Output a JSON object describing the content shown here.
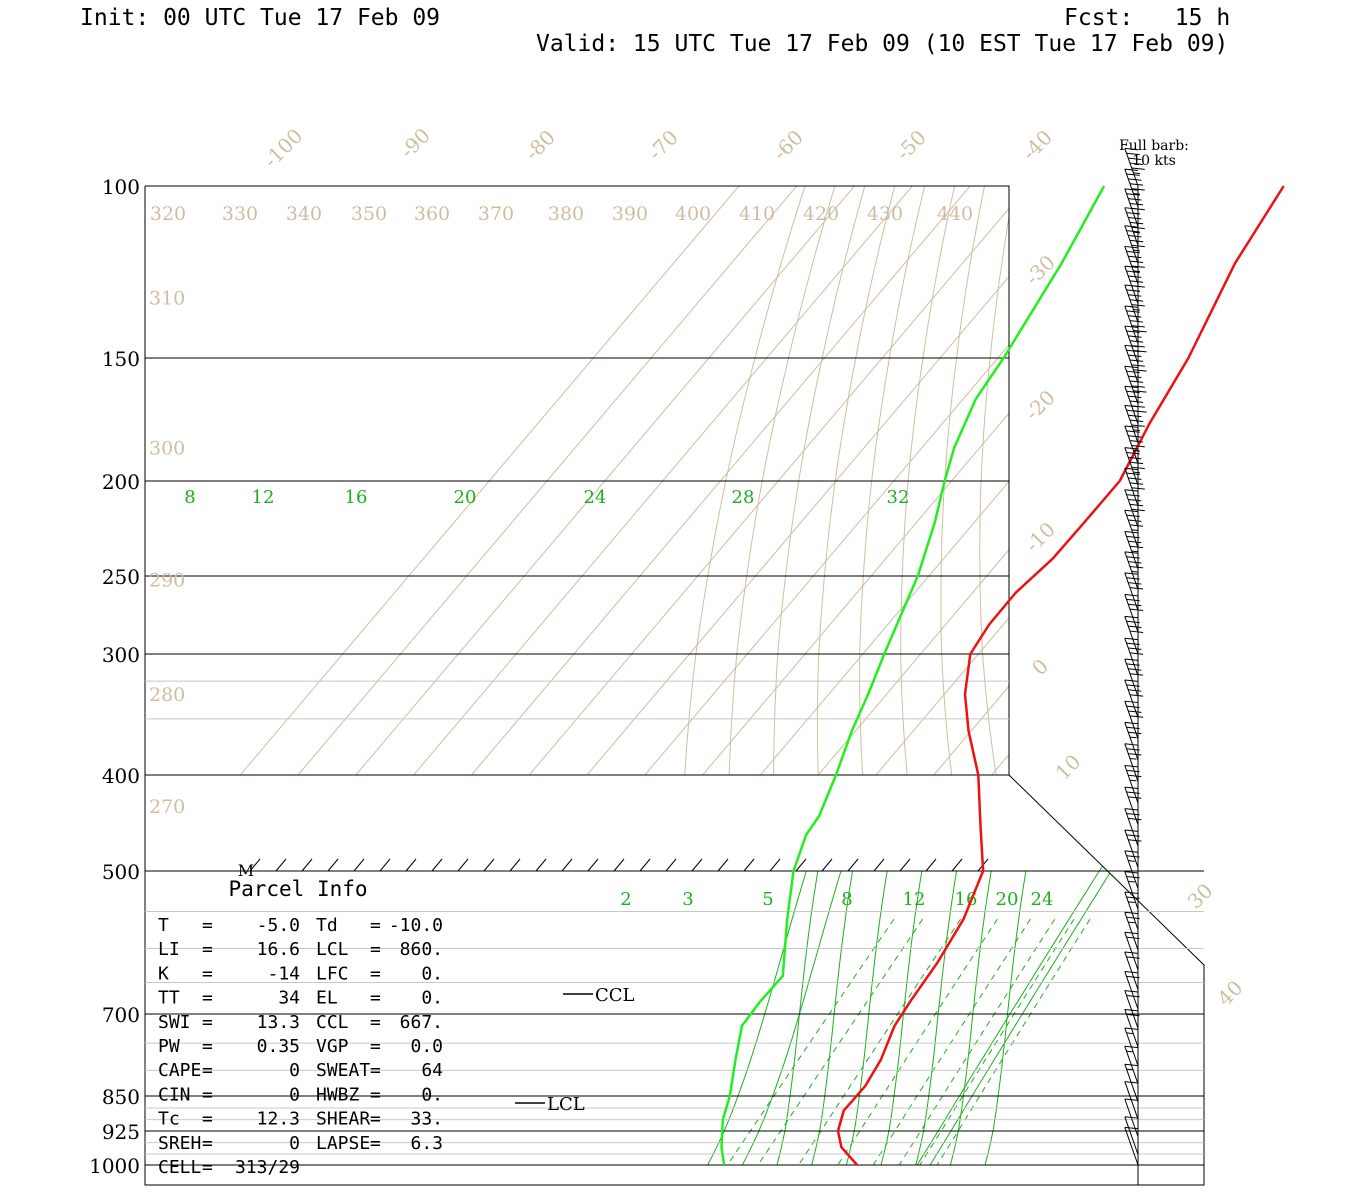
{
  "header": {
    "init": "Init: 00 UTC Tue 17 Feb 09",
    "fcst": "Fcst:   15 h",
    "valid": "Valid: 15 UTC Tue 17 Feb 09 (10 EST Tue 17 Feb 09)"
  },
  "barb_note": {
    "line1": "Full barb:",
    "line2": "10 kts"
  },
  "parcel_info": {
    "title": "Parcel Info",
    "marker": "M",
    "rows": [
      {
        "l1": "T",
        "v1": "-5.0",
        "l2": "Td",
        "v2": "-10.0"
      },
      {
        "l1": "LI",
        "v1": "16.6",
        "l2": "LCL",
        "v2": "860."
      },
      {
        "l1": "K",
        "v1": "-14",
        "l2": "LFC",
        "v2": "0."
      },
      {
        "l1": "TT",
        "v1": "34",
        "l2": "EL",
        "v2": "0."
      },
      {
        "l1": "SWI",
        "v1": "13.3",
        "l2": "CCL",
        "v2": "667."
      },
      {
        "l1": "PW",
        "v1": "0.35",
        "l2": "VGP",
        "v2": "0.0"
      },
      {
        "l1": "CAPE",
        "v1": "0",
        "l2": "SWEAT",
        "v2": "64"
      },
      {
        "l1": "CIN",
        "v1": "0",
        "l2": "HWBZ",
        "v2": "0."
      },
      {
        "l1": "Tc",
        "v1": "12.3",
        "l2": "SHEAR",
        "v2": "33."
      },
      {
        "l1": "SREH",
        "v1": "0",
        "l2": "LAPSE",
        "v2": "6.3"
      },
      {
        "l1": "CELL",
        "v1": "313/29",
        "l2": "",
        "v2": ""
      }
    ]
  },
  "markers": {
    "lcl": "LCL",
    "ccl": "CCL"
  },
  "colors": {
    "temperature": "#ee1111",
    "dewpoint": "#22ee22",
    "isotherm": "#d8c4a8",
    "mixing_ratio": "#1cb01c",
    "grid": "#000000"
  },
  "chart_data": {
    "type": "line",
    "title": "",
    "xlabel": "",
    "ylabel": "",
    "y_scale": "log",
    "y_reversed": true,
    "pressure_levels": [
      100,
      150,
      200,
      250,
      300,
      400,
      500,
      700,
      850,
      925,
      1000
    ],
    "pressure_labels": [
      "100",
      "150",
      "200",
      "250",
      "300",
      "400",
      "500",
      "700",
      "850",
      "925",
      "1000"
    ],
    "isotherm_labels": [
      "-100",
      "-90",
      "-80",
      "-70",
      "-60",
      "-50",
      "-40",
      "-30",
      "-20",
      "-10",
      "0",
      "10",
      "30",
      "40"
    ],
    "theta_labels_top": [
      "320",
      "330",
      "340",
      "350",
      "360",
      "370",
      "380",
      "390",
      "400",
      "410",
      "420",
      "430",
      "440"
    ],
    "theta_labels_left": [
      {
        "label": "310",
        "p": 130
      },
      {
        "label": "300",
        "p": 185
      },
      {
        "label": "290",
        "p": 252
      },
      {
        "label": "280",
        "p": 330
      },
      {
        "label": "270",
        "p": 430
      }
    ],
    "mixing_ratio_upper": [
      {
        "label": "8",
        "p": 200
      },
      {
        "label": "12",
        "p": 200
      },
      {
        "label": "16",
        "p": 200
      },
      {
        "label": "20",
        "p": 200
      },
      {
        "label": "24",
        "p": 200
      },
      {
        "label": "28",
        "p": 200
      },
      {
        "label": "32",
        "p": 200
      }
    ],
    "mixing_ratio_lower": [
      "2",
      "3",
      "5",
      "8",
      "12",
      "16",
      "20",
      "24"
    ],
    "series": [
      {
        "name": "Temperature",
        "points": [
          [
            100,
            420
          ],
          [
            120,
            404
          ],
          [
            150,
            389
          ],
          [
            175,
            377
          ],
          [
            200,
            368
          ],
          [
            220,
            358
          ],
          [
            240,
            349
          ],
          [
            260,
            339
          ],
          [
            280,
            332
          ],
          [
            300,
            327
          ],
          [
            330,
            325
          ],
          [
            360,
            325
          ],
          [
            400,
            326
          ],
          [
            450,
            325
          ],
          [
            500,
            324
          ],
          [
            560,
            318
          ],
          [
            620,
            311
          ],
          [
            680,
            304
          ],
          [
            720,
            300
          ],
          [
            780,
            296
          ],
          [
            830,
            292
          ],
          [
            860,
            289
          ],
          [
            880,
            287
          ],
          [
            925,
            285
          ],
          [
            960,
            285
          ],
          [
            1000,
            287
          ]
        ]
      },
      {
        "name": "Dewpoint",
        "points": [
          [
            100,
            360
          ],
          [
            120,
            349
          ],
          [
            150,
            334
          ],
          [
            165,
            327
          ],
          [
            185,
            322
          ],
          [
            200,
            320
          ],
          [
            220,
            318
          ],
          [
            250,
            314
          ],
          [
            280,
            309
          ],
          [
            300,
            306
          ],
          [
            330,
            302
          ],
          [
            360,
            298
          ],
          [
            400,
            294
          ],
          [
            440,
            290
          ],
          [
            460,
            287
          ],
          [
            500,
            284
          ],
          [
            560,
            282
          ],
          [
            640,
            280
          ],
          [
            680,
            275
          ],
          [
            720,
            271
          ],
          [
            780,
            269
          ],
          [
            850,
            267
          ],
          [
            900,
            265
          ],
          [
            960,
            264
          ],
          [
            1000,
            264
          ]
        ]
      }
    ],
    "wind_barb_levels_hpa": [
      100,
      105,
      110,
      115,
      120,
      126,
      132,
      138,
      145,
      152,
      159,
      167,
      175,
      183,
      192,
      202,
      212,
      223,
      234,
      246,
      258,
      271,
      285,
      300,
      316,
      332,
      349,
      367,
      386,
      406,
      427,
      449,
      472,
      496,
      521,
      547,
      574,
      602,
      631,
      661,
      692,
      724,
      757,
      791,
      826,
      862,
      899,
      937,
      976,
      1000
    ],
    "wind_barb_speeds_kt": [
      55,
      55,
      55,
      55,
      55,
      55,
      55,
      55,
      60,
      60,
      60,
      60,
      60,
      55,
      55,
      55,
      50,
      50,
      45,
      45,
      45,
      40,
      40,
      40,
      40,
      40,
      40,
      40,
      35,
      35,
      35,
      30,
      30,
      30,
      25,
      25,
      25,
      25,
      20,
      20,
      20,
      20,
      20,
      15,
      15,
      15,
      10,
      10,
      10,
      10
    ]
  }
}
